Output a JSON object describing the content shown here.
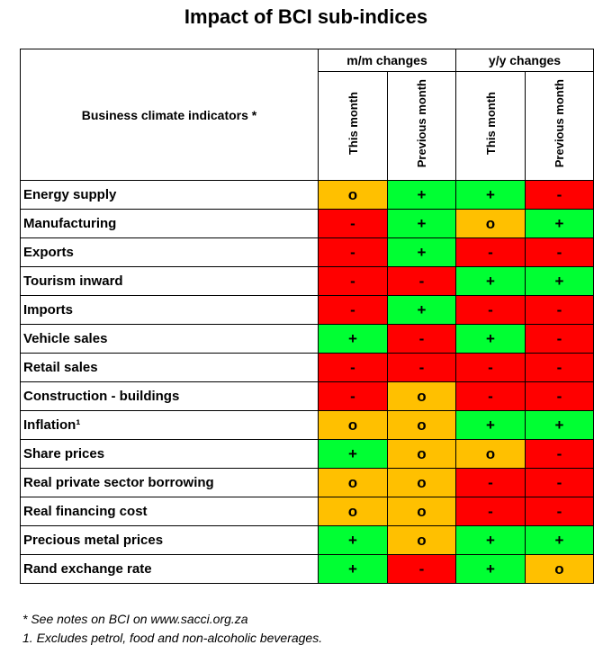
{
  "title": "Impact of BCI sub-indices",
  "header": {
    "row_label": "Business climate indicators *",
    "groups": [
      "m/m changes",
      "y/y changes"
    ],
    "subcolumns": [
      "This month",
      "Previous month",
      "This month",
      "Previous month"
    ]
  },
  "colors": {
    "plus": "#00ff33",
    "minus": "#ff0000",
    "neutral": "#ffc000"
  },
  "rows": [
    {
      "label": "Energy supply",
      "values": [
        "o",
        "+",
        "+",
        "-"
      ]
    },
    {
      "label": "Manufacturing",
      "values": [
        "-",
        "+",
        "o",
        "+"
      ]
    },
    {
      "label": "Exports",
      "values": [
        "-",
        "+",
        "-",
        "-"
      ]
    },
    {
      "label": "Tourism inward",
      "values": [
        "-",
        "-",
        "+",
        "+"
      ]
    },
    {
      "label": "Imports",
      "values": [
        "-",
        "+",
        "-",
        "-"
      ]
    },
    {
      "label": "Vehicle sales",
      "values": [
        "+",
        "-",
        "+",
        "-"
      ]
    },
    {
      "label": "Retail sales",
      "values": [
        "-",
        "-",
        "-",
        "-"
      ]
    },
    {
      "label": "Construction - buildings",
      "values": [
        "-",
        "o",
        "-",
        "-"
      ]
    },
    {
      "label": "Inflation¹",
      "values": [
        "o",
        "o",
        "+",
        "+"
      ]
    },
    {
      "label": "Share prices",
      "values": [
        "+",
        "o",
        "o",
        "-"
      ]
    },
    {
      "label": "Real private sector borrowing",
      "values": [
        "o",
        "o",
        "-",
        "-"
      ]
    },
    {
      "label": "Real financing cost",
      "values": [
        "o",
        "o",
        "-",
        "-"
      ]
    },
    {
      "label": "Precious metal prices",
      "values": [
        "+",
        "o",
        "+",
        "+"
      ]
    },
    {
      "label": "Rand exchange rate",
      "values": [
        "+",
        "-",
        "+",
        "o"
      ]
    }
  ],
  "notes": [
    "* See notes on BCI on www.sacci.org.za",
    "1. Excludes petrol, food and non-alcoholic beverages."
  ]
}
